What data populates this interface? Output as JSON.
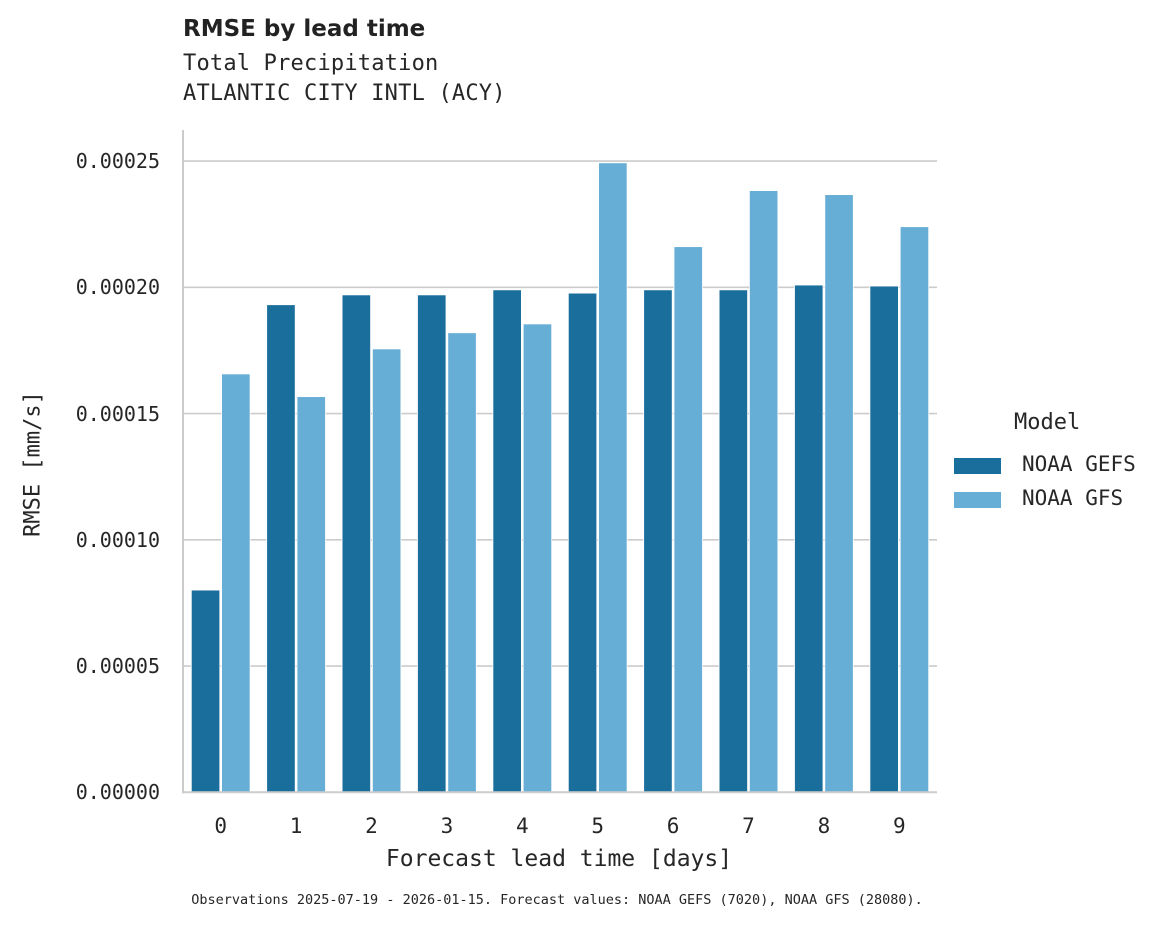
{
  "header": {
    "title": "RMSE by lead time",
    "subtitle_line1": "Total Precipitation",
    "subtitle_line2": "ATLANTIC CITY INTL (ACY)"
  },
  "axes": {
    "xlabel": "Forecast lead time [days]",
    "ylabel": "RMSE [mm/s]",
    "yticks": [
      "0.00000",
      "0.00005",
      "0.00010",
      "0.00015",
      "0.00020",
      "0.00025"
    ],
    "xticks": [
      "0",
      "1",
      "2",
      "3",
      "4",
      "5",
      "6",
      "7",
      "8",
      "9"
    ]
  },
  "legend": {
    "title": "Model",
    "items": [
      {
        "label": "NOAA GEFS",
        "color": "#1a6e9c"
      },
      {
        "label": "NOAA GFS",
        "color": "#67aed6"
      }
    ]
  },
  "footnote": "Observations 2025-07-19 - 2026-01-15. Forecast values: NOAA GEFS (7020), NOAA GFS (28080).",
  "colors": {
    "gefs": "#1a6e9c",
    "gfs": "#67aed6",
    "grid": "#cccccc",
    "axis": "#cccccc"
  },
  "chart_data": {
    "type": "bar",
    "title": "RMSE by lead time",
    "subtitle": "Total Precipitation / ATLANTIC CITY INTL (ACY)",
    "xlabel": "Forecast lead time [days]",
    "ylabel": "RMSE [mm/s]",
    "categories": [
      "0",
      "1",
      "2",
      "3",
      "4",
      "5",
      "6",
      "7",
      "8",
      "9"
    ],
    "series": [
      {
        "name": "NOAA GEFS",
        "values": [
          8.01e-05,
          0.0001931,
          0.000197,
          0.000197,
          0.000199,
          0.0001977,
          0.000199,
          0.000199,
          0.0002009,
          0.0002005
        ]
      },
      {
        "name": "NOAA GFS",
        "values": [
          0.0001657,
          0.0001567,
          0.0001756,
          0.000182,
          0.0001855,
          0.0002493,
          0.0002161,
          0.0002383,
          0.0002367,
          0.000224
        ]
      }
    ],
    "ylim": [
      0,
      0.000263
    ],
    "yticks": [
      0,
      5e-05,
      0.0001,
      0.00015,
      0.0002,
      0.00025
    ],
    "grid": "horizontal",
    "legend_position": "right",
    "legend_title": "Model"
  }
}
